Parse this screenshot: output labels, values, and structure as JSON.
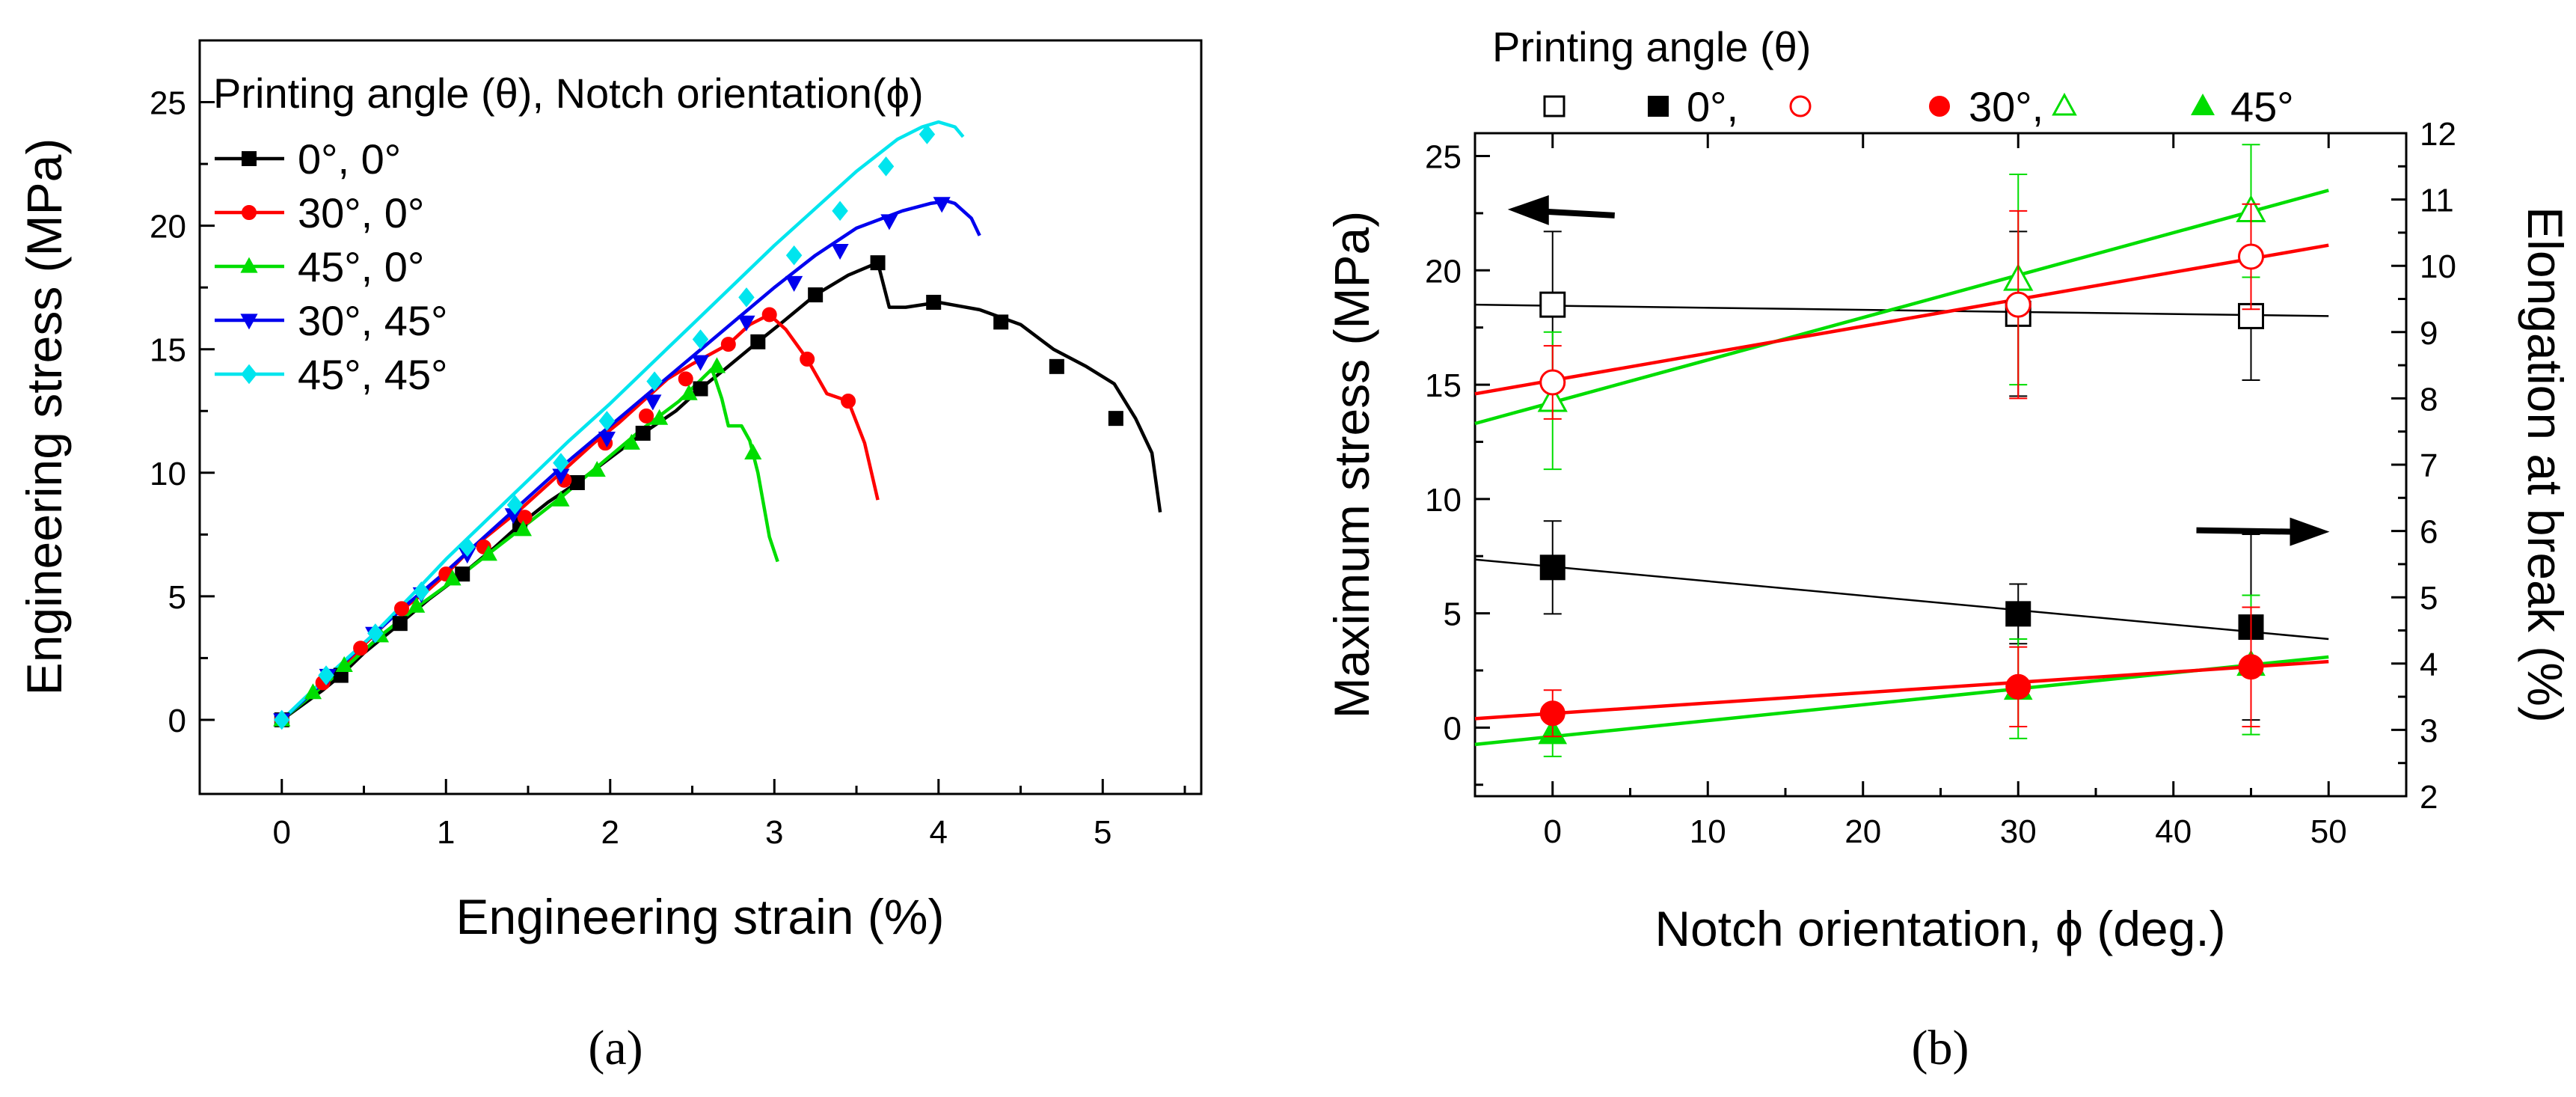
{
  "chart_data": [
    {
      "type": "line",
      "panel_label": "(a)",
      "xlabel": "Engineering strain (%)",
      "ylabel": "Engineering stress (MPa)",
      "xlim": [
        -0.5,
        5.6
      ],
      "ylim": [
        -3,
        27.5
      ],
      "xticks": [
        0,
        1,
        2,
        3,
        4,
        5
      ],
      "yticks": [
        0,
        5,
        10,
        15,
        20,
        25
      ],
      "grid": false,
      "legend": {
        "placement": "top-left",
        "title": "Printing angle (θ), Notch orientation(ϕ)"
      },
      "series": [
        {
          "name": "0°, 0°",
          "color": "#000000",
          "marker": "square",
          "x": [
            0,
            0.25,
            0.36,
            0.5,
            0.72,
            0.9,
            1.1,
            1.3,
            1.45,
            1.62,
            1.8,
            2.0,
            2.2,
            2.4,
            2.55,
            2.7,
            2.9,
            3.05,
            3.25,
            3.45,
            3.63,
            3.7,
            3.8,
            4.0,
            4.25,
            4.5,
            4.7,
            4.9,
            5.07,
            5.2,
            5.3,
            5.35
          ],
          "y": [
            0,
            1.2,
            1.8,
            2.7,
            3.9,
            4.9,
            5.9,
            7.0,
            7.9,
            8.8,
            9.6,
            10.6,
            11.6,
            12.5,
            13.4,
            14.2,
            15.3,
            16.1,
            17.2,
            18.0,
            18.5,
            16.7,
            16.7,
            16.9,
            16.6,
            16.0,
            15.0,
            14.3,
            13.6,
            12.2,
            10.8,
            8.4
          ],
          "marked_points": [
            [
              0,
              0
            ],
            [
              0.36,
              1.8
            ],
            [
              0.72,
              3.9
            ],
            [
              1.1,
              5.9
            ],
            [
              1.45,
              7.9
            ],
            [
              1.8,
              9.6
            ],
            [
              2.2,
              11.6
            ],
            [
              2.55,
              13.4
            ],
            [
              2.9,
              15.3
            ],
            [
              3.25,
              17.2
            ],
            [
              3.63,
              18.5
            ],
            [
              3.97,
              16.9
            ],
            [
              4.38,
              16.1
            ],
            [
              4.72,
              14.3
            ],
            [
              5.08,
              12.2
            ]
          ]
        },
        {
          "name": "30°, 0°",
          "color": "#ff0000",
          "marker": "circle",
          "x": [
            0,
            0.25,
            0.38,
            0.48,
            0.68,
            0.9,
            1.0,
            1.15,
            1.3,
            1.45,
            1.6,
            1.75,
            1.9,
            2.05,
            2.2,
            2.35,
            2.5,
            2.72,
            2.85,
            2.97,
            3.07,
            3.2,
            3.32,
            3.45,
            3.55,
            3.63
          ],
          "y": [
            0,
            1.5,
            2.1,
            2.9,
            4.2,
            5.3,
            5.9,
            6.9,
            7.7,
            8.5,
            9.4,
            10.3,
            11.2,
            12.0,
            12.9,
            13.8,
            14.4,
            15.2,
            16.0,
            16.4,
            15.8,
            14.6,
            13.2,
            12.9,
            11.2,
            8.9
          ],
          "marked_points": [
            [
              0,
              0
            ],
            [
              0.25,
              1.5
            ],
            [
              0.48,
              2.9
            ],
            [
              0.73,
              4.5
            ],
            [
              1.0,
              5.9
            ],
            [
              1.23,
              7.0
            ],
            [
              1.48,
              8.2
            ],
            [
              1.72,
              9.7
            ],
            [
              1.97,
              11.2
            ],
            [
              2.22,
              12.3
            ],
            [
              2.46,
              13.8
            ],
            [
              2.72,
              15.2
            ],
            [
              2.97,
              16.4
            ],
            [
              3.2,
              14.6
            ],
            [
              3.45,
              12.9
            ]
          ]
        },
        {
          "name": "45°, 0°",
          "color": "#00dd00",
          "marker": "triangle-up",
          "x": [
            0,
            0.2,
            0.4,
            0.6,
            0.85,
            1.1,
            1.45,
            1.7,
            1.95,
            2.2,
            2.42,
            2.62,
            2.68,
            2.72,
            2.8,
            2.85,
            2.9,
            2.97,
            3.02
          ],
          "y": [
            0,
            1.1,
            2.2,
            3.4,
            4.7,
            5.9,
            7.7,
            9.0,
            10.4,
            11.8,
            12.9,
            14.2,
            13.0,
            11.9,
            11.9,
            11.3,
            10.0,
            7.4,
            6.4
          ],
          "marked_points": [
            [
              0,
              0
            ],
            [
              0.19,
              1.1
            ],
            [
              0.38,
              2.2
            ],
            [
              0.6,
              3.4
            ],
            [
              0.82,
              4.6
            ],
            [
              1.04,
              5.7
            ],
            [
              1.26,
              6.7
            ],
            [
              1.47,
              7.7
            ],
            [
              1.7,
              8.9
            ],
            [
              1.92,
              10.1
            ],
            [
              2.13,
              11.2
            ],
            [
              2.3,
              12.2
            ],
            [
              2.48,
              13.2
            ],
            [
              2.65,
              14.3
            ],
            [
              2.87,
              10.8
            ]
          ]
        },
        {
          "name": "30°, 45°",
          "color": "#0000ee",
          "marker": "triangle-down",
          "x": [
            0,
            0.3,
            0.5,
            0.75,
            1.0,
            1.25,
            1.5,
            1.75,
            2.0,
            2.25,
            2.5,
            2.75,
            3.0,
            3.25,
            3.5,
            3.78,
            3.95,
            4.05,
            4.1,
            4.2,
            4.25
          ],
          "y": [
            0,
            1.8,
            3.1,
            4.6,
            6.0,
            7.5,
            9.0,
            10.5,
            11.9,
            13.3,
            14.7,
            16.1,
            17.5,
            18.8,
            19.9,
            20.6,
            20.9,
            21.0,
            20.9,
            20.3,
            19.6
          ],
          "marked_points": [
            [
              0,
              0
            ],
            [
              0.28,
              1.8
            ],
            [
              0.56,
              3.5
            ],
            [
              0.85,
              5.1
            ],
            [
              1.13,
              6.7
            ],
            [
              1.41,
              8.3
            ],
            [
              1.7,
              9.9
            ],
            [
              1.98,
              11.4
            ],
            [
              2.26,
              12.9
            ],
            [
              2.55,
              14.5
            ],
            [
              2.83,
              16.1
            ],
            [
              3.12,
              17.7
            ],
            [
              3.4,
              19.0
            ],
            [
              3.7,
              20.2
            ],
            [
              4.02,
              20.9
            ]
          ]
        },
        {
          "name": "45°, 45°",
          "color": "#00e5ee",
          "marker": "diamond",
          "x": [
            0,
            0.3,
            0.55,
            0.8,
            1.0,
            1.25,
            1.5,
            1.75,
            2.0,
            2.25,
            2.5,
            2.75,
            3.0,
            3.25,
            3.5,
            3.75,
            3.9,
            4.0,
            4.1,
            4.15
          ],
          "y": [
            0,
            1.9,
            3.4,
            5.1,
            6.5,
            8.1,
            9.7,
            11.3,
            12.8,
            14.4,
            16.0,
            17.6,
            19.2,
            20.7,
            22.2,
            23.5,
            24.0,
            24.2,
            24.0,
            23.6
          ],
          "marked_points": [
            [
              0,
              0
            ],
            [
              0.27,
              1.8
            ],
            [
              0.57,
              3.5
            ],
            [
              0.85,
              5.2
            ],
            [
              1.13,
              7.0
            ],
            [
              1.42,
              8.7
            ],
            [
              1.7,
              10.4
            ],
            [
              1.98,
              12.1
            ],
            [
              2.27,
              13.7
            ],
            [
              2.55,
              15.4
            ],
            [
              2.83,
              17.1
            ],
            [
              3.12,
              18.8
            ],
            [
              3.4,
              20.6
            ],
            [
              3.68,
              22.4
            ],
            [
              3.93,
              23.7
            ]
          ]
        }
      ]
    },
    {
      "type": "scatter",
      "panel_label": "(b)",
      "xlabel": "Notch orientation, ϕ (deg.)",
      "ylabel": "Maximum stress (MPa)",
      "y2label": "Elongation at break (%)",
      "xlim": [
        -5,
        55
      ],
      "ylim": [
        -3,
        26
      ],
      "y2lim": [
        2,
        12
      ],
      "xticks": [
        0,
        10,
        20,
        30,
        40,
        50
      ],
      "yticks": [
        0,
        5,
        10,
        15,
        20,
        25
      ],
      "y2ticks": [
        2,
        3,
        4,
        5,
        6,
        7,
        8,
        9,
        10,
        11,
        12
      ],
      "grid": false,
      "legend": {
        "placement": "top",
        "title": "Printing angle (θ)",
        "entries": [
          {
            "marker_open": "square",
            "marker_filled": "square",
            "color": "#000000",
            "label": "0°,"
          },
          {
            "marker_open": "circle",
            "marker_filled": "circle",
            "color": "#ff0000",
            "label": "30°,"
          },
          {
            "marker_open": "triangle-up",
            "marker_filled": "triangle-up",
            "color": "#00dd00",
            "label": "45°"
          }
        ]
      },
      "series": [
        {
          "name": "0°",
          "axis": "left",
          "marker": "square",
          "filled": false,
          "color": "#000000",
          "x": [
            0,
            30,
            45
          ],
          "y": [
            18.5,
            18.1,
            18.0
          ],
          "err": [
            3.2,
            3.6,
            2.8
          ],
          "fit": [
            [
              -5,
              18.5
            ],
            [
              50,
              18.0
            ]
          ]
        },
        {
          "name": "30°",
          "axis": "left",
          "marker": "circle",
          "filled": false,
          "color": "#ff0000",
          "x": [
            0,
            30,
            45
          ],
          "y": [
            15.1,
            18.5,
            20.6
          ],
          "err": [
            1.6,
            4.1,
            2.3
          ],
          "fit": [
            [
              -5,
              14.6
            ],
            [
              50,
              21.1
            ]
          ]
        },
        {
          "name": "45°",
          "axis": "left",
          "marker": "triangle-up",
          "filled": false,
          "color": "#00dd00",
          "x": [
            0,
            30,
            45
          ],
          "y": [
            14.3,
            19.6,
            22.6
          ],
          "err": [
            3.0,
            4.6,
            2.9
          ],
          "fit": [
            [
              -5,
              13.3
            ],
            [
              50,
              23.5
            ]
          ]
        },
        {
          "name": "0°",
          "axis": "right",
          "marker": "square",
          "filled": true,
          "color": "#000000",
          "x": [
            0,
            30,
            45
          ],
          "y": [
            5.45,
            4.75,
            4.55
          ],
          "err": [
            0.7,
            0.45,
            1.4
          ],
          "fit": [
            [
              -5,
              5.57
            ],
            [
              50,
              4.37
            ]
          ]
        },
        {
          "name": "30°",
          "axis": "right",
          "marker": "circle",
          "filled": true,
          "color": "#ff0000",
          "x": [
            0,
            30,
            45
          ],
          "y": [
            3.25,
            3.65,
            3.95
          ],
          "err": [
            0.35,
            0.6,
            0.9
          ],
          "fit": [
            [
              -5,
              3.17
            ],
            [
              50,
              4.03
            ]
          ]
        },
        {
          "name": "45°",
          "axis": "right",
          "marker": "triangle-up",
          "filled": true,
          "color": "#00dd00",
          "x": [
            0,
            30,
            45
          ],
          "y": [
            2.95,
            3.62,
            3.98
          ],
          "err": [
            0.35,
            0.75,
            1.05
          ],
          "fit": [
            [
              -5,
              2.78
            ],
            [
              50,
              4.1
            ]
          ]
        }
      ],
      "annotations": [
        {
          "type": "arrow",
          "direction": "left",
          "axis": "left",
          "x": 0,
          "y": 22.5
        },
        {
          "type": "arrow",
          "direction": "right",
          "axis": "right",
          "x": 45,
          "y": 6.0
        }
      ]
    }
  ]
}
